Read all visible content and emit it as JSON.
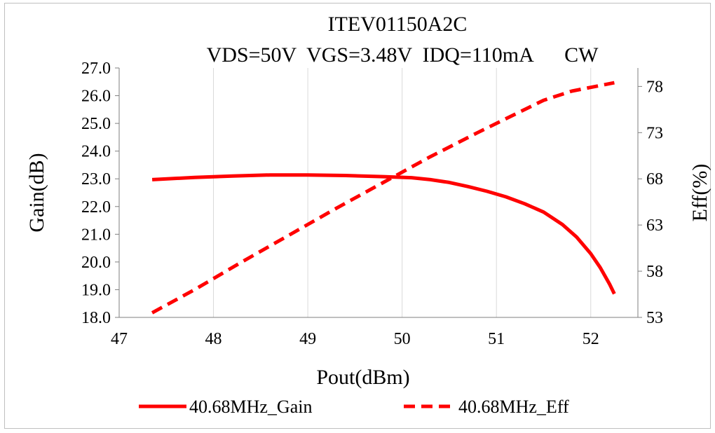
{
  "chart_data": {
    "type": "line",
    "title": "ITEV01150A2C",
    "subtitle": "VDS=50V  VGS=3.48V  IDQ=110mA      CW",
    "xlabel": "Pout(dBm)",
    "ylabel": "Gain(dB)",
    "y2label": "Eff(%)",
    "xlim": [
      47,
      52.5
    ],
    "ylim": [
      18.0,
      27.0
    ],
    "y2lim": [
      53,
      80
    ],
    "x_ticks": [
      "47",
      "48",
      "49",
      "50",
      "51",
      "52"
    ],
    "y_ticks": [
      "18.0",
      "19.0",
      "20.0",
      "21.0",
      "22.0",
      "23.0",
      "24.0",
      "25.0",
      "26.0",
      "27.0"
    ],
    "y2_ticks": [
      "53",
      "58",
      "63",
      "68",
      "73",
      "78"
    ],
    "grid": "vertical",
    "legend_position": "bottom",
    "colors": {
      "series": "#ff0000",
      "grid": "#d9d9d9",
      "axis": "#7f7f7f"
    },
    "series": [
      {
        "name": "40.68MHz_Gain",
        "axis": "left",
        "style": "solid",
        "x": [
          47.35,
          47.8,
          48.2,
          48.6,
          49.0,
          49.4,
          49.8,
          50.1,
          50.3,
          50.5,
          50.7,
          50.9,
          51.1,
          51.3,
          51.5,
          51.7,
          51.85,
          52.0,
          52.1,
          52.2,
          52.25
        ],
        "values": [
          22.97,
          23.05,
          23.1,
          23.14,
          23.14,
          23.12,
          23.08,
          23.04,
          22.97,
          22.87,
          22.72,
          22.55,
          22.35,
          22.1,
          21.8,
          21.35,
          20.9,
          20.3,
          19.8,
          19.2,
          18.85
        ]
      },
      {
        "name": "40.68MHz_Eff",
        "axis": "right",
        "style": "dashed",
        "x": [
          47.35,
          47.8,
          48.3,
          48.8,
          49.3,
          49.8,
          50.3,
          50.8,
          51.2,
          51.5,
          51.8,
          52.0,
          52.25
        ],
        "values": [
          53.5,
          56.0,
          59.0,
          61.9,
          64.8,
          67.6,
          70.4,
          73.0,
          75.0,
          76.5,
          77.5,
          77.9,
          78.4
        ]
      }
    ]
  }
}
